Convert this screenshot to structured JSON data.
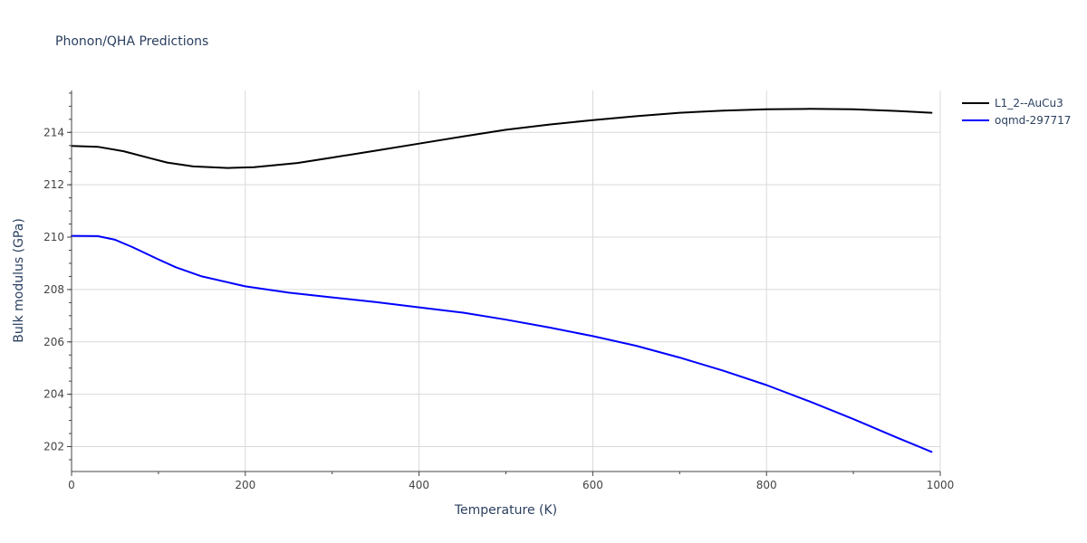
{
  "chart_data": {
    "type": "line",
    "title": "Phonon/QHA Predictions",
    "xlabel": "Temperature (K)",
    "ylabel": "Bulk modulus (GPa)",
    "xlim": [
      0,
      1000
    ],
    "ylim": [
      201.05,
      215.6
    ],
    "x_ticks": [
      0,
      200,
      400,
      600,
      800,
      1000
    ],
    "y_ticks": [
      202,
      204,
      206,
      208,
      210,
      212,
      214
    ],
    "grid": true,
    "legend_position": "top-right",
    "series": [
      {
        "name": "L1_2--AuCu3",
        "color": "#000000",
        "x": [
          0,
          30,
          60,
          90,
          110,
          140,
          180,
          210,
          260,
          300,
          350,
          400,
          450,
          500,
          550,
          600,
          650,
          700,
          750,
          800,
          850,
          900,
          950,
          990
        ],
        "y": [
          213.48,
          213.45,
          213.28,
          213.02,
          212.85,
          212.7,
          212.64,
          212.67,
          212.83,
          213.04,
          213.3,
          213.57,
          213.84,
          214.1,
          214.3,
          214.47,
          214.62,
          214.75,
          214.83,
          214.88,
          214.9,
          214.88,
          214.82,
          214.75
        ]
      },
      {
        "name": "oqmd-297717",
        "color": "#0000ff",
        "x": [
          0,
          30,
          50,
          70,
          100,
          120,
          150,
          200,
          250,
          300,
          350,
          400,
          450,
          500,
          550,
          600,
          650,
          700,
          750,
          800,
          850,
          900,
          950,
          990
        ],
        "y": [
          210.05,
          210.04,
          209.9,
          209.62,
          209.15,
          208.85,
          208.5,
          208.12,
          207.88,
          207.7,
          207.52,
          207.32,
          207.12,
          206.85,
          206.55,
          206.22,
          205.85,
          205.4,
          204.9,
          204.35,
          203.72,
          203.05,
          202.35,
          201.8
        ]
      }
    ]
  }
}
